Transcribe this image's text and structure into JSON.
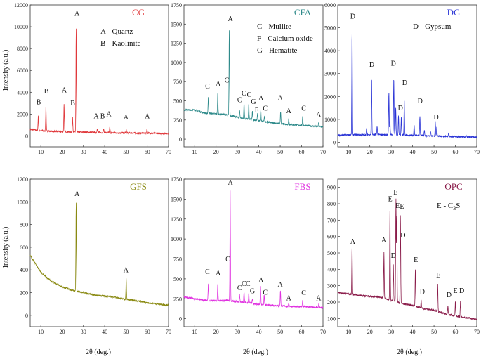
{
  "shared": {
    "ylabel": "Intensity (a.u.)",
    "xlabel": "2θ (deg.)",
    "xticks": [
      10,
      20,
      30,
      40,
      50,
      60,
      70
    ]
  },
  "chart_data": [
    {
      "type": "line",
      "title": "CG",
      "color": "#e0383b",
      "xlim": [
        5,
        70
      ],
      "ylim": [
        -1000,
        12000
      ],
      "yticks": [
        0,
        2000,
        4000,
        6000,
        8000,
        10000,
        12000
      ],
      "baseline": [
        [
          5,
          600
        ],
        [
          10,
          480
        ],
        [
          15,
          420
        ],
        [
          20,
          390
        ],
        [
          25,
          370
        ],
        [
          30,
          340
        ],
        [
          40,
          300
        ],
        [
          50,
          270
        ],
        [
          60,
          240
        ],
        [
          70,
          220
        ]
      ],
      "peaks": [
        [
          8.8,
          1850
        ],
        [
          12.4,
          2700
        ],
        [
          20.9,
          2900
        ],
        [
          24.9,
          1750
        ],
        [
          26.6,
          9800
        ],
        [
          36.5,
          700
        ],
        [
          39.5,
          650
        ],
        [
          42.4,
          800
        ],
        [
          50.1,
          600
        ],
        [
          59.9,
          650
        ]
      ],
      "peak_labels": [
        {
          "text": "B",
          "x": 9,
          "y": 2900
        },
        {
          "text": "B",
          "x": 12.6,
          "y": 3900
        },
        {
          "text": "A",
          "x": 21,
          "y": 4000
        },
        {
          "text": "B",
          "x": 25,
          "y": 2800
        },
        {
          "text": "A",
          "x": 27,
          "y": 11000
        },
        {
          "text": "A",
          "x": 36,
          "y": 1600
        },
        {
          "text": "B",
          "x": 39,
          "y": 1600
        },
        {
          "text": "A",
          "x": 42,
          "y": 1800
        },
        {
          "text": "A",
          "x": 50,
          "y": 1500
        },
        {
          "text": "A",
          "x": 60,
          "y": 1600
        }
      ],
      "legend": [
        "A - Quartz",
        "B - Kaolinite"
      ]
    },
    {
      "type": "line",
      "title": "CFA",
      "color": "#2e8a8a",
      "xlim": [
        5,
        70
      ],
      "ylim": [
        -100,
        1750
      ],
      "yticks": [
        0,
        250,
        500,
        750,
        1000,
        1250,
        1500,
        1750
      ],
      "baseline": [
        [
          5,
          380
        ],
        [
          10,
          380
        ],
        [
          15,
          340
        ],
        [
          20,
          330
        ],
        [
          24,
          320
        ],
        [
          28,
          300
        ],
        [
          33,
          270
        ],
        [
          40,
          240
        ],
        [
          50,
          200
        ],
        [
          60,
          180
        ],
        [
          70,
          160
        ]
      ],
      "peaks": [
        [
          16.4,
          560
        ],
        [
          20.8,
          590
        ],
        [
          26.2,
          1420
        ],
        [
          31,
          380
        ],
        [
          33.1,
          470
        ],
        [
          35.3,
          460
        ],
        [
          37,
          360
        ],
        [
          39.4,
          330
        ],
        [
          40.9,
          380
        ],
        [
          42.6,
          300
        ],
        [
          50.2,
          360
        ],
        [
          54,
          270
        ],
        [
          60.5,
          300
        ],
        [
          68,
          220
        ]
      ],
      "peak_labels": [
        {
          "text": "C",
          "x": 16,
          "y": 660
        },
        {
          "text": "A",
          "x": 21,
          "y": 690
        },
        {
          "text": "C",
          "x": 25,
          "y": 740
        },
        {
          "text": "A",
          "x": 26.7,
          "y": 1540
        },
        {
          "text": "C",
          "x": 31,
          "y": 480
        },
        {
          "text": "C",
          "x": 33,
          "y": 570
        },
        {
          "text": "C",
          "x": 35.5,
          "y": 550
        },
        {
          "text": "G",
          "x": 37.5,
          "y": 460
        },
        {
          "text": "F",
          "x": 39,
          "y": 350
        },
        {
          "text": "A",
          "x": 41,
          "y": 510
        },
        {
          "text": "C",
          "x": 43,
          "y": 370
        },
        {
          "text": "A",
          "x": 50,
          "y": 510
        },
        {
          "text": "A",
          "x": 54,
          "y": 340
        },
        {
          "text": "C",
          "x": 61,
          "y": 370
        },
        {
          "text": "A",
          "x": 68,
          "y": 290
        }
      ],
      "legend": [
        "C - Mullite",
        "F - Calcium oxide",
        "G - Hematite"
      ]
    },
    {
      "type": "line",
      "title": "DG",
      "color": "#2b35d6",
      "xlim": [
        5,
        70
      ],
      "ylim": [
        -200,
        6000
      ],
      "yticks": [
        0,
        1000,
        2000,
        3000,
        4000,
        5000,
        6000
      ],
      "baseline": [
        [
          5,
          300
        ],
        [
          10,
          320
        ],
        [
          20,
          330
        ],
        [
          30,
          330
        ],
        [
          40,
          300
        ],
        [
          50,
          270
        ],
        [
          60,
          240
        ],
        [
          70,
          220
        ]
      ],
      "peaks": [
        [
          11.7,
          4900
        ],
        [
          18.5,
          600
        ],
        [
          20.8,
          2800
        ],
        [
          23.4,
          700
        ],
        [
          28.9,
          2200
        ],
        [
          29.4,
          900
        ],
        [
          31.2,
          2800
        ],
        [
          32.1,
          1500
        ],
        [
          33.4,
          1200
        ],
        [
          34.7,
          1100
        ],
        [
          36.1,
          1800
        ],
        [
          40.7,
          750
        ],
        [
          43.4,
          1150
        ],
        [
          45.5,
          550
        ],
        [
          48.4,
          500
        ],
        [
          50.6,
          900
        ],
        [
          51.3,
          700
        ],
        [
          56.8,
          400
        ],
        [
          65,
          300
        ]
      ],
      "peak_labels": [
        {
          "text": "D",
          "x": 12,
          "y": 5400
        },
        {
          "text": "D",
          "x": 20.9,
          "y": 3300
        },
        {
          "text": "D",
          "x": 31,
          "y": 3350
        },
        {
          "text": "D",
          "x": 34.3,
          "y": 1400
        },
        {
          "text": "D",
          "x": 36.3,
          "y": 2500
        },
        {
          "text": "D",
          "x": 43.5,
          "y": 1700
        },
        {
          "text": "D",
          "x": 51,
          "y": 1000
        }
      ],
      "legend": [
        "D - Gypsum"
      ]
    },
    {
      "type": "line",
      "title": "GFS",
      "color": "#8a8a12",
      "xlim": [
        5,
        70
      ],
      "ylim": [
        -100,
        1200
      ],
      "yticks": [
        0,
        200,
        400,
        600,
        800,
        1000,
        1200
      ],
      "baseline": [
        [
          5,
          530
        ],
        [
          7,
          470
        ],
        [
          10,
          380
        ],
        [
          15,
          300
        ],
        [
          20,
          250
        ],
        [
          25,
          220
        ],
        [
          30,
          200
        ],
        [
          35,
          180
        ],
        [
          40,
          170
        ],
        [
          45,
          160
        ],
        [
          50,
          140
        ],
        [
          55,
          130
        ],
        [
          60,
          110
        ],
        [
          65,
          100
        ],
        [
          70,
          90
        ]
      ],
      "peaks": [
        [
          26.6,
          1000
        ],
        [
          50.1,
          330
        ]
      ],
      "peak_labels": [
        {
          "text": "A",
          "x": 27,
          "y": 1050
        },
        {
          "text": "A",
          "x": 50,
          "y": 380
        }
      ],
      "legend": []
    },
    {
      "type": "line",
      "title": "FBS",
      "color": "#e033e0",
      "xlim": [
        5,
        70
      ],
      "ylim": [
        -100,
        1750
      ],
      "yticks": [
        0,
        250,
        500,
        750,
        1000,
        1250,
        1500,
        1750
      ],
      "baseline": [
        [
          5,
          270
        ],
        [
          10,
          250
        ],
        [
          15,
          230
        ],
        [
          20,
          225
        ],
        [
          25,
          230
        ],
        [
          28,
          220
        ],
        [
          35,
          200
        ],
        [
          40,
          180
        ],
        [
          50,
          160
        ],
        [
          60,
          150
        ],
        [
          70,
          140
        ]
      ],
      "peaks": [
        [
          16.4,
          450
        ],
        [
          20.8,
          430
        ],
        [
          26.6,
          1600
        ],
        [
          31,
          300
        ],
        [
          33.1,
          340
        ],
        [
          35.3,
          320
        ],
        [
          37,
          250
        ],
        [
          40.8,
          420
        ],
        [
          42.5,
          300
        ],
        [
          50.1,
          360
        ],
        [
          54,
          200
        ],
        [
          60.5,
          230
        ],
        [
          68,
          180
        ]
      ],
      "peak_labels": [
        {
          "text": "C",
          "x": 16,
          "y": 560
        },
        {
          "text": "A",
          "x": 21,
          "y": 545
        },
        {
          "text": "C",
          "x": 25.5,
          "y": 720
        },
        {
          "text": "A",
          "x": 26.7,
          "y": 1680
        },
        {
          "text": "C",
          "x": 31,
          "y": 360
        },
        {
          "text": "C",
          "x": 33,
          "y": 410
        },
        {
          "text": "C",
          "x": 35,
          "y": 410
        },
        {
          "text": "G",
          "x": 37,
          "y": 320
        },
        {
          "text": "A",
          "x": 41,
          "y": 460
        },
        {
          "text": "C",
          "x": 43,
          "y": 300
        },
        {
          "text": "A",
          "x": 50,
          "y": 400
        },
        {
          "text": "A",
          "x": 54,
          "y": 230
        },
        {
          "text": "C",
          "x": 61,
          "y": 295
        },
        {
          "text": "A",
          "x": 68,
          "y": 230
        }
      ],
      "legend": []
    },
    {
      "type": "line",
      "title": "OPC",
      "color": "#8a1c4a",
      "xlim": [
        5,
        70
      ],
      "ylim": [
        50,
        950
      ],
      "yticks": [
        100,
        200,
        300,
        400,
        500,
        600,
        700,
        800,
        900
      ],
      "baseline": [
        [
          5,
          260
        ],
        [
          15,
          240
        ],
        [
          25,
          230
        ],
        [
          30,
          210
        ],
        [
          35,
          190
        ],
        [
          40,
          180
        ],
        [
          45,
          160
        ],
        [
          50,
          150
        ],
        [
          55,
          130
        ],
        [
          60,
          115
        ],
        [
          65,
          105
        ],
        [
          70,
          95
        ]
      ],
      "peaks": [
        [
          11.7,
          540
        ],
        [
          26.6,
          510
        ],
        [
          29.4,
          760
        ],
        [
          31,
          430
        ],
        [
          32.2,
          830
        ],
        [
          32.6,
          720
        ],
        [
          34.3,
          730
        ],
        [
          41.3,
          400
        ],
        [
          44,
          210
        ],
        [
          51.7,
          310
        ],
        [
          56.5,
          180
        ],
        [
          60,
          200
        ],
        [
          62.4,
          210
        ]
      ],
      "peak_labels": [
        {
          "text": "A",
          "x": 12,
          "y": 555
        },
        {
          "text": "A",
          "x": 26.5,
          "y": 565
        },
        {
          "text": "E",
          "x": 29.5,
          "y": 815
        },
        {
          "text": "D",
          "x": 31,
          "y": 470
        },
        {
          "text": "E",
          "x": 32,
          "y": 855
        },
        {
          "text": "E",
          "x": 33,
          "y": 775
        },
        {
          "text": "E",
          "x": 35,
          "y": 770
        },
        {
          "text": "D",
          "x": 35.5,
          "y": 595
        },
        {
          "text": "E",
          "x": 41.5,
          "y": 445
        },
        {
          "text": "D",
          "x": 44.5,
          "y": 250
        },
        {
          "text": "E",
          "x": 52,
          "y": 350
        },
        {
          "text": "D",
          "x": 57,
          "y": 230
        },
        {
          "text": "E",
          "x": 60,
          "y": 255
        },
        {
          "text": "D",
          "x": 63,
          "y": 255
        }
      ],
      "legend": [
        "E - C",
        "3",
        "S"
      ]
    }
  ]
}
